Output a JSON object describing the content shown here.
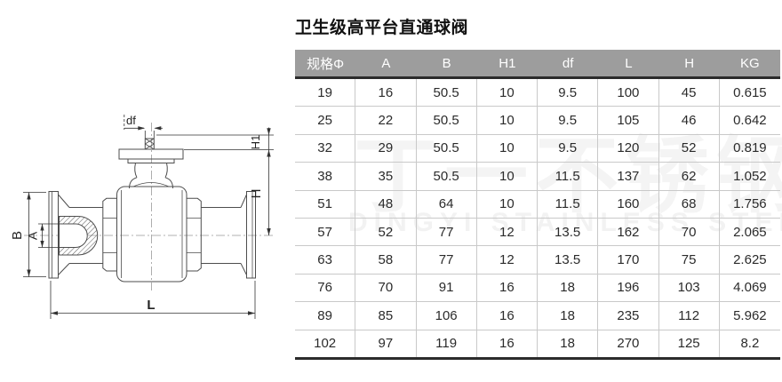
{
  "title": "卫生级高平台直通球阀",
  "watermark": {
    "cn": "丁一不锈钢",
    "en": "DINGYI STAINLESS STEEL"
  },
  "diagram": {
    "description": "ball-valve-dimension-drawing",
    "labels": {
      "df": "df",
      "h1": "H1",
      "h": "H",
      "b": "B",
      "a": "A",
      "l": "L"
    }
  },
  "table": {
    "headers": [
      "规格Φ",
      "A",
      "B",
      "H1",
      "df",
      "L",
      "H",
      "KG"
    ],
    "rows": [
      [
        "19",
        "16",
        "50.5",
        "10",
        "9.5",
        "100",
        "45",
        "0.615"
      ],
      [
        "25",
        "22",
        "50.5",
        "10",
        "9.5",
        "105",
        "46",
        "0.642"
      ],
      [
        "32",
        "29",
        "50.5",
        "10",
        "9.5",
        "120",
        "52",
        "0.819"
      ],
      [
        "38",
        "35",
        "50.5",
        "10",
        "11.5",
        "137",
        "62",
        "1.052"
      ],
      [
        "51",
        "48",
        "64",
        "10",
        "11.5",
        "160",
        "68",
        "1.756"
      ],
      [
        "57",
        "52",
        "77",
        "12",
        "13.5",
        "162",
        "70",
        "2.065"
      ],
      [
        "63",
        "58",
        "77",
        "12",
        "13.5",
        "170",
        "75",
        "2.625"
      ],
      [
        "76",
        "70",
        "91",
        "16",
        "18",
        "196",
        "103",
        "4.069"
      ],
      [
        "89",
        "85",
        "106",
        "16",
        "18",
        "235",
        "112",
        "5.962"
      ],
      [
        "102",
        "97",
        "119",
        "16",
        "18",
        "270",
        "125",
        "8.2"
      ]
    ]
  },
  "colors": {
    "header_bg": "#9d9d9d",
    "header_text": "#ffffff",
    "border_dark": "#2b2b2b",
    "border_light": "#c9c9c9",
    "body_text": "#2b2b2b",
    "drawing_line": "#4d4d4d"
  }
}
